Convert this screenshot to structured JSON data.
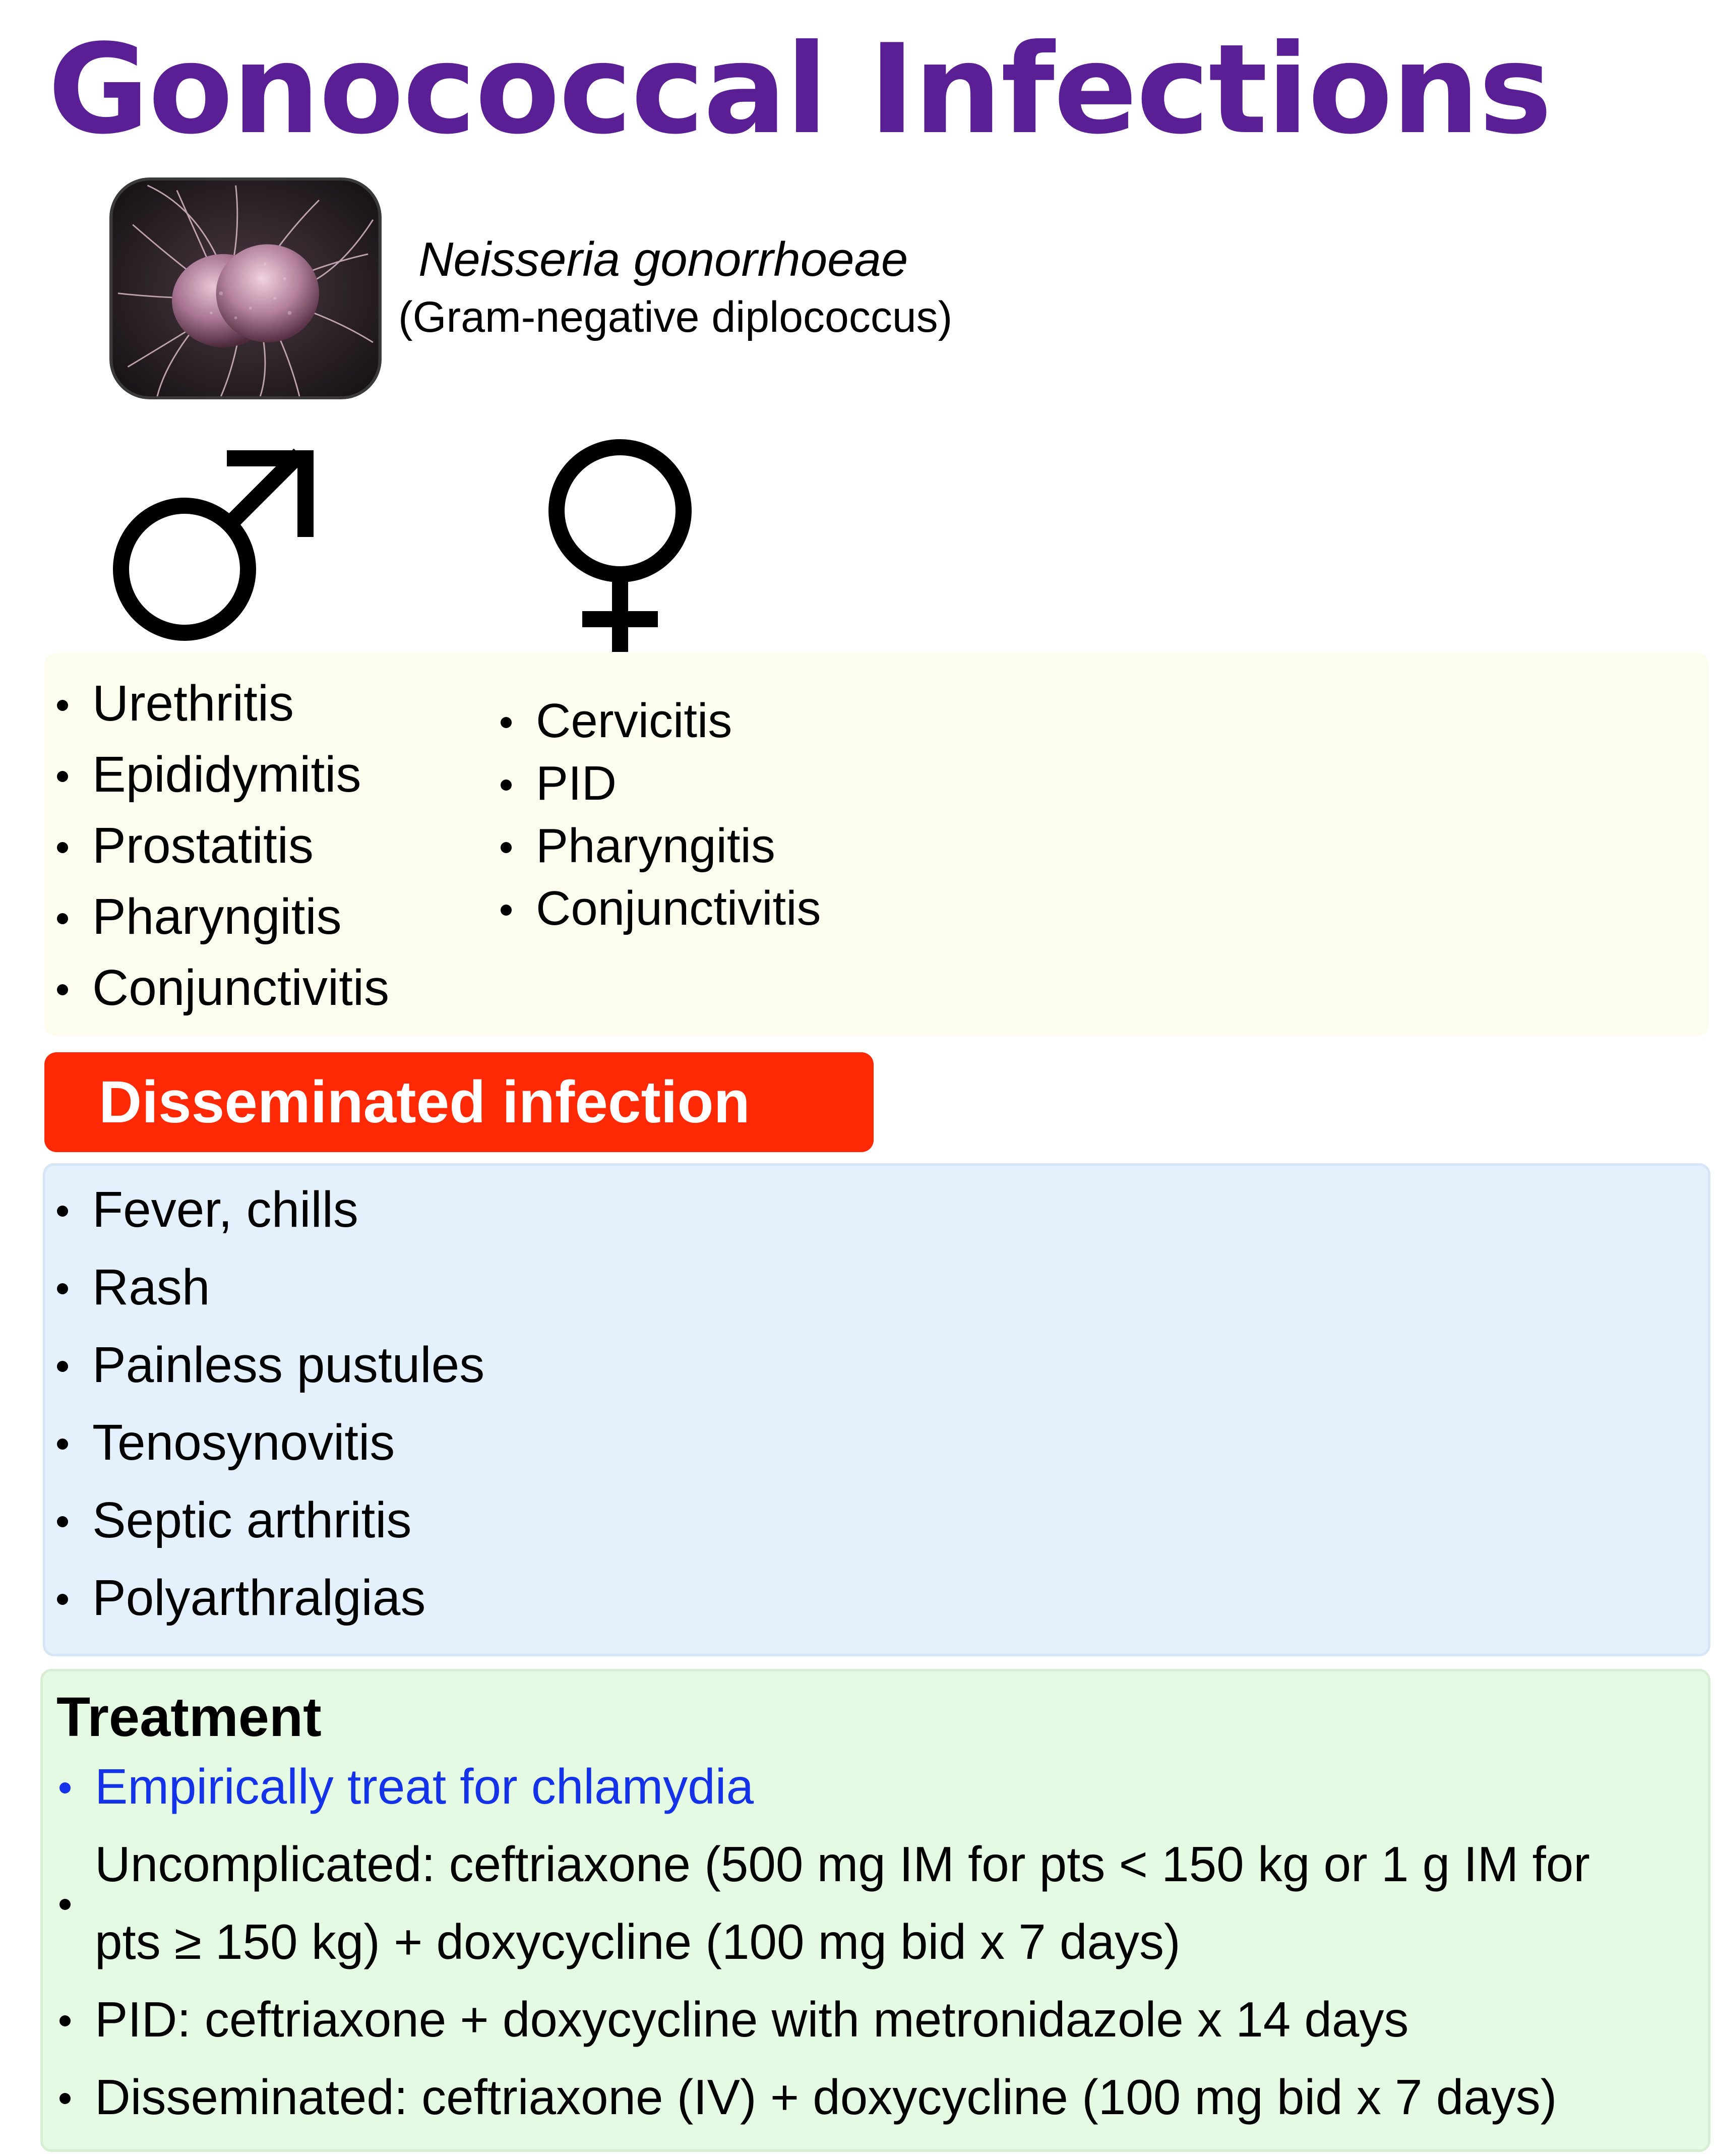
{
  "title": "Gonococcal Infections",
  "organism": {
    "name": "Neisseria gonorrhoeae",
    "description": "(Gram-negative diplococcus)"
  },
  "male": {
    "symbol": "male-symbol-icon",
    "items": [
      "Urethritis",
      "Epididymitis",
      "Prostatitis",
      "Pharyngitis",
      "Conjunctivitis"
    ]
  },
  "female": {
    "symbol": "female-symbol-icon",
    "items": [
      "Cervicitis",
      "PID",
      "Pharyngitis",
      "Conjunctivitis"
    ]
  },
  "disseminated": {
    "heading": "Disseminated infection",
    "items": [
      "Fever, chills",
      "Rash",
      "Painless pustules",
      "Tenosynovitis",
      "Septic arthritis",
      "Polyarthralgias"
    ]
  },
  "treatment": {
    "heading": "Treatment",
    "items": [
      "Empirically treat for chlamydia",
      "Uncomplicated: ceftriaxone (500 mg IM for pts < 150 kg or 1 g IM for",
      "pts ≥ 150 kg) + doxycycline (100 mg bid x 7 days)",
      "PID: ceftriaxone + doxycycline with metronidazole x 14 days",
      "Disseminated: ceftriaxone (IV) + doxycycline (100 mg bid x 7 days)"
    ]
  },
  "colors": {
    "title": "#5b1f95",
    "disseminated_bar": "#ff2a05",
    "genital_panel": "#fdfdef",
    "disseminated_panel": "#e4f1fd",
    "treatment_panel": "#e5fae2",
    "highlight_text": "#1432e8"
  }
}
